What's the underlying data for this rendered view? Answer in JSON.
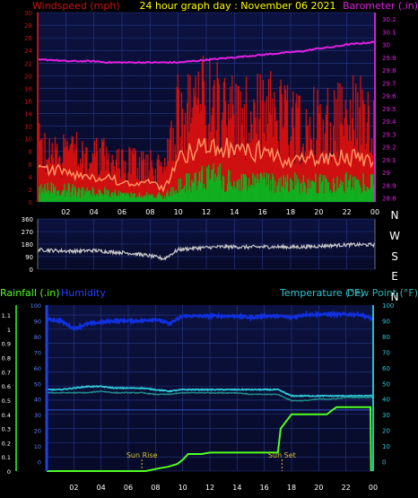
{
  "title": "24 hour graph day : November 06 2021",
  "colors": {
    "background": "#000000",
    "plot_bg": "#0a0f3a",
    "grid": "#2a3a8a",
    "wind": "#d01010",
    "wind_avg": "#ff9060",
    "gust_low": "#10b020",
    "barometer": "#e020e0",
    "direction": "#c8c8c8",
    "humidity": "#1030e0",
    "temperature": "#30c8d8",
    "dewpoint": "#208888",
    "rain": "#50ff20",
    "sun": "#d8c030",
    "title": "#ffff00",
    "axis_text": "#ffffff"
  },
  "chart_data": [
    {
      "id": "wind_barometer",
      "type": "bar",
      "title": "24 hour graph day : November 06 2021",
      "left_axis_label": "Windspeed (mph)",
      "right_axis_label": "Barometer (.in)",
      "x_ticks": [
        "02",
        "04",
        "06",
        "08",
        "10",
        "12",
        "14",
        "16",
        "18",
        "20",
        "22",
        "00"
      ],
      "left_ticks": [
        "0",
        "2",
        "4",
        "6",
        "8",
        "10",
        "12",
        "14",
        "16",
        "18",
        "20",
        "22",
        "24",
        "26",
        "28",
        "30"
      ],
      "right_ticks": [
        "28.8",
        "28.9",
        "29",
        "29.1",
        "29.2",
        "29.3",
        "29.4",
        "29.5",
        "29.6",
        "29.7",
        "29.8",
        "29.9",
        "30",
        "30.1",
        "30.2"
      ],
      "xlim": [
        0,
        24
      ],
      "ylim_left": [
        0,
        30
      ],
      "ylim_right": [
        28.77,
        30.25
      ],
      "wind_gust_hourly": [
        9,
        8,
        9,
        8,
        8,
        7,
        6,
        7,
        6,
        5,
        16,
        17,
        17,
        16,
        15,
        14,
        15,
        15,
        13,
        13,
        14,
        14,
        15,
        15
      ],
      "wind_avg_hourly": [
        5,
        5,
        5,
        4,
        4,
        4,
        3,
        3,
        3,
        2,
        7,
        8,
        9,
        9,
        8,
        8,
        8,
        7,
        6,
        7,
        7,
        7,
        7,
        7
      ],
      "wind_low_hourly": [
        2,
        2,
        2,
        1.5,
        1.5,
        1.5,
        1,
        1,
        1,
        1,
        3,
        3,
        4,
        4,
        3,
        3,
        3,
        3,
        3,
        3,
        3,
        3,
        3,
        3
      ],
      "barometer_hourly": [
        29.88,
        29.88,
        29.87,
        29.87,
        29.87,
        29.86,
        29.86,
        29.86,
        29.86,
        29.86,
        29.86,
        29.87,
        29.88,
        29.89,
        29.9,
        29.91,
        29.92,
        29.93,
        29.94,
        29.95,
        29.97,
        29.98,
        30.0,
        30.01,
        30.02
      ]
    },
    {
      "id": "wind_direction",
      "type": "line",
      "left_ticks": [
        "0",
        "90",
        "180",
        "270",
        "360"
      ],
      "right_ticks": [
        "N",
        "W",
        "S",
        "E",
        "N"
      ],
      "ylim": [
        0,
        360
      ],
      "direction_hourly": [
        140,
        135,
        130,
        130,
        135,
        125,
        120,
        110,
        95,
        75,
        140,
        150,
        155,
        160,
        160,
        158,
        160,
        160,
        158,
        160,
        165,
        170,
        175,
        175,
        175
      ]
    },
    {
      "id": "rain_humidity_temp",
      "type": "line",
      "left_axis_label": "Rainfall (.in)",
      "left_axis_label2": "Humidity",
      "right_axis_label": "Temperature (°F)",
      "right_axis_label2": "Dew Point (°F)",
      "left_ticks": [
        "0",
        "0.1",
        "0.2",
        "0.3",
        "0.4",
        "0.5",
        "0.6",
        "0.7",
        "0.8",
        "0.9",
        "1",
        "1.1"
      ],
      "left_ticks2": [
        "0",
        "10",
        "20",
        "30",
        "40",
        "50",
        "60",
        "70",
        "80",
        "90",
        "100"
      ],
      "right_ticks": [
        "0",
        "10",
        "20",
        "30",
        "40",
        "50",
        "60",
        "70",
        "80",
        "90",
        "100"
      ],
      "ylim_rain": [
        0,
        1.17
      ],
      "ylim_pct": [
        -6,
        100
      ],
      "humidity_hourly": [
        91,
        90,
        85,
        88,
        89,
        90,
        90,
        90,
        91,
        88,
        93,
        93,
        93,
        93,
        93,
        92,
        93,
        93,
        92,
        94,
        94,
        94,
        94,
        94,
        91
      ],
      "temperature_hourly": [
        46,
        46,
        47,
        48,
        48,
        47,
        47,
        47,
        46,
        45,
        46,
        46,
        46,
        46,
        46,
        46,
        46,
        46,
        42,
        42,
        42,
        42,
        42,
        42,
        42
      ],
      "dewpoint_hourly": [
        44,
        44,
        44,
        44,
        45,
        44,
        44,
        44,
        43,
        43,
        44,
        44,
        44,
        44,
        44,
        43,
        43,
        43,
        39,
        39,
        40,
        40,
        41,
        41,
        41
      ],
      "rain_cumulative": [
        [
          0,
          0
        ],
        [
          7.3,
          0
        ],
        [
          8.3,
          0.02
        ],
        [
          8.9,
          0.03
        ],
        [
          9.6,
          0.05
        ],
        [
          10.0,
          0.08
        ],
        [
          10.4,
          0.12
        ],
        [
          11.4,
          0.12
        ],
        [
          12.0,
          0.13
        ],
        [
          16.2,
          0.13
        ],
        [
          17.0,
          0.13
        ],
        [
          17.2,
          0.3
        ],
        [
          17.6,
          0.35
        ],
        [
          18.0,
          0.4
        ],
        [
          18.3,
          0.4
        ],
        [
          19.8,
          0.4
        ],
        [
          20.6,
          0.4
        ],
        [
          21.0,
          0.43
        ],
        [
          21.3,
          0.45
        ],
        [
          22.5,
          0.45
        ],
        [
          23.8,
          0.45
        ],
        [
          23.85,
          0.0
        ]
      ],
      "markers": [
        {
          "label": "Sun Rise",
          "x": 7.0
        },
        {
          "label": "Sun Set",
          "x": 17.3
        }
      ],
      "x_ticks": [
        "02",
        "04",
        "06",
        "08",
        "10",
        "12",
        "14",
        "16",
        "18",
        "20",
        "22",
        "00"
      ]
    }
  ]
}
